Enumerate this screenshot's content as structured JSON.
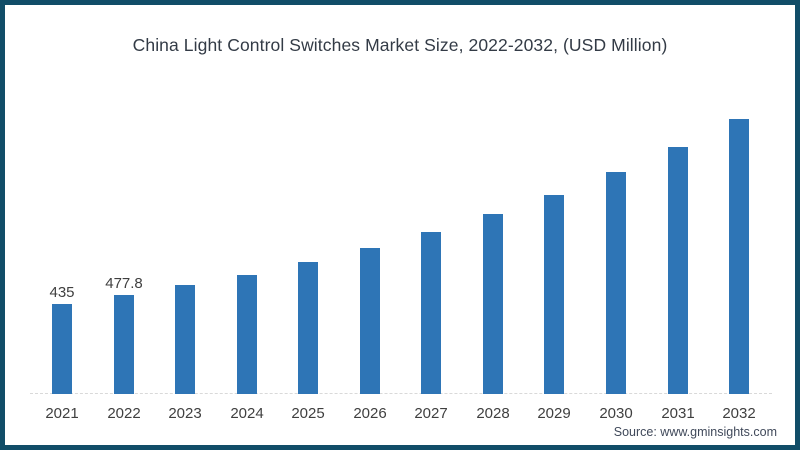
{
  "title": "China Light Control Switches Market Size, 2022-2032, (USD Million)",
  "source": "Source: www.gminsights.com",
  "colors": {
    "bar": "#2e75b6",
    "frame_border": "#114d68",
    "axis_line": "#d9d9d9",
    "title_text": "#333b46",
    "tick_text": "#3f3f3f",
    "source_text": "#40495a"
  },
  "chart_data": {
    "type": "bar",
    "title": "China Light Control Switches Market Size, 2022-2032, (USD Million)",
    "categories": [
      "2021",
      "2022",
      "2023",
      "2024",
      "2025",
      "2026",
      "2027",
      "2028",
      "2029",
      "2030",
      "2031",
      "2032"
    ],
    "values": [
      435,
      477.8,
      530,
      578,
      642,
      710,
      787,
      875,
      967,
      1076,
      1196,
      1332
    ],
    "data_labels": [
      "435",
      "477.8",
      "",
      "",
      "",
      "",
      "",
      "",
      "",
      "",
      "",
      ""
    ],
    "xlabel": "",
    "ylabel": "",
    "unit": "USD Million",
    "ylim": [
      0,
      1400
    ],
    "grid": false,
    "legend": false
  }
}
